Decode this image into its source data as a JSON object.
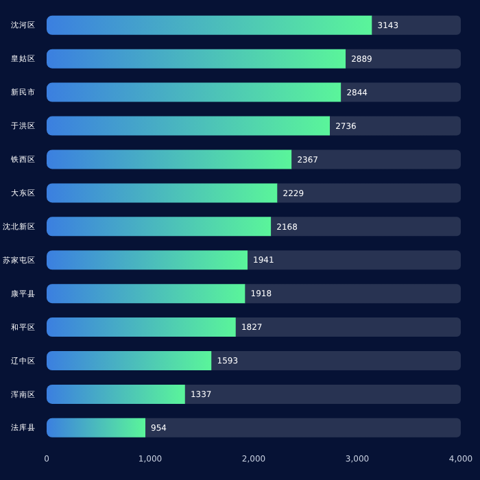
{
  "chart_data": {
    "type": "bar",
    "orientation": "horizontal",
    "stacked": true,
    "categories": [
      "沈河区",
      "皇姑区",
      "新民市",
      "于洪区",
      "铁西区",
      "大东区",
      "沈北新区",
      "苏家屯区",
      "康平县",
      "和平区",
      "辽中区",
      "浑南区",
      "法库县"
    ],
    "series": [
      {
        "color": "#5af59a",
        "values": [
          3143,
          2889,
          2844,
          2736,
          2367,
          2229,
          2168,
          1941,
          1918,
          1827,
          1593,
          1337,
          954
        ],
        "value_labels": [
          "3143",
          "2889",
          "2844",
          "2736",
          "2367",
          "2229",
          "2168",
          "1941",
          "1918",
          "1827",
          "1593",
          "1337",
          "954"
        ]
      },
      {
        "color": "#283352",
        "values": [
          857,
          1111,
          1156,
          1264,
          1633,
          1771,
          1832,
          2059,
          2082,
          2173,
          2407,
          2663,
          3046
        ]
      }
    ],
    "xlim": [
      0,
      4000
    ],
    "xticks": [
      0,
      {
        "value": 1000,
        "label": "1,000"
      },
      {
        "value": 2000,
        "label": "2,000"
      },
      {
        "value": 3000,
        "label": "3,000"
      },
      {
        "value": 4000,
        "label": "4,000"
      }
    ],
    "grid": false
  }
}
